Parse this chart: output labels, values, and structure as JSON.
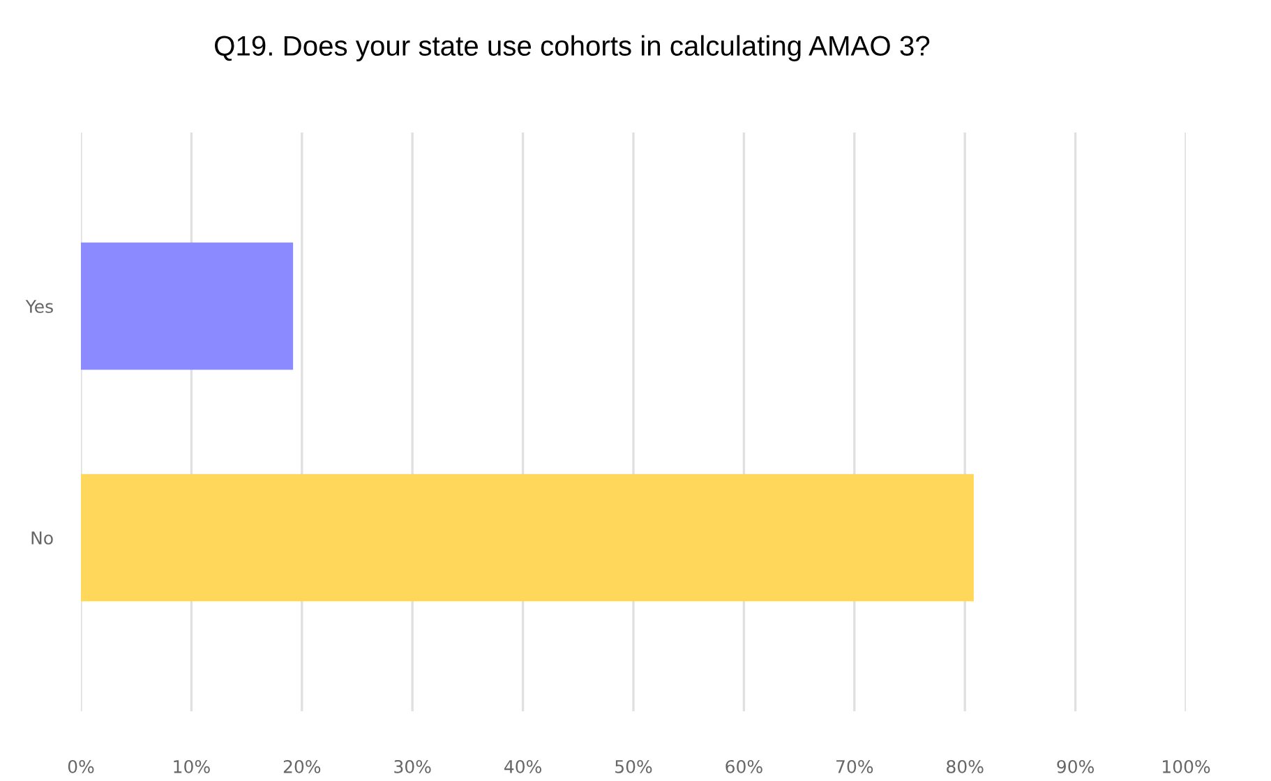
{
  "chart_data": {
    "type": "bar",
    "orientation": "horizontal",
    "title": "Q19. Does your state use cohorts in calculating AMAO 3?",
    "categories": [
      "Yes",
      "No"
    ],
    "values": [
      19.2,
      80.8
    ],
    "colors": [
      "#8b8bff",
      "#ffd75a"
    ],
    "xlim": [
      0,
      100
    ],
    "xticks": [
      {
        "value": 0,
        "label": "0%"
      },
      {
        "value": 10,
        "label": "10%"
      },
      {
        "value": 20,
        "label": "20%"
      },
      {
        "value": 30,
        "label": "30%"
      },
      {
        "value": 40,
        "label": "40%"
      },
      {
        "value": 50,
        "label": "50%"
      },
      {
        "value": 60,
        "label": "60%"
      },
      {
        "value": 70,
        "label": "70%"
      },
      {
        "value": 80,
        "label": "80%"
      },
      {
        "value": 90,
        "label": "90%"
      },
      {
        "value": 100,
        "label": "100%"
      }
    ],
    "grid": "x"
  }
}
